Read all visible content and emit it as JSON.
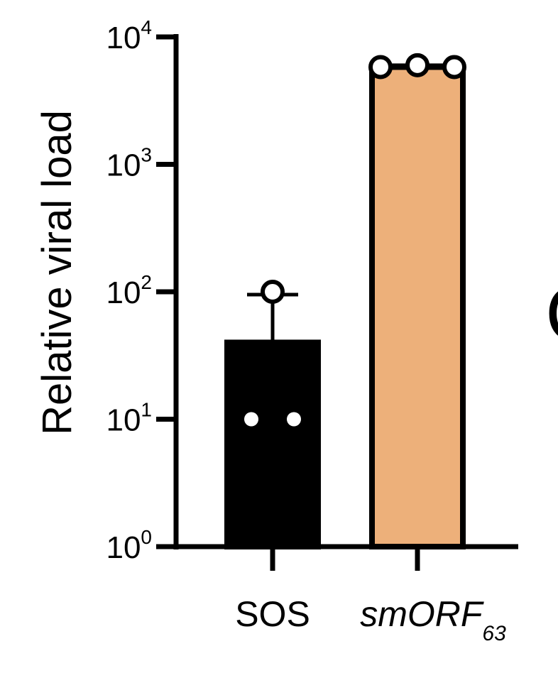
{
  "chart_data": {
    "type": "bar",
    "yscale": "log",
    "ylim": [
      1,
      10000
    ],
    "ylabel": "Relative viral load",
    "yticks": [
      {
        "base": "10",
        "exp": "0",
        "value": 1
      },
      {
        "base": "10",
        "exp": "1",
        "value": 10
      },
      {
        "base": "10",
        "exp": "2",
        "value": 100
      },
      {
        "base": "10",
        "exp": "3",
        "value": 1000
      },
      {
        "base": "10",
        "exp": "4",
        "value": 10000
      }
    ],
    "categories": [
      {
        "label": "SOS",
        "sub": "",
        "italic": false
      },
      {
        "label": "smORF",
        "sub": "63",
        "italic": true
      }
    ],
    "values": [
      40,
      5800
    ],
    "errors": [
      95,
      6000
    ],
    "points": [
      [
        10,
        10,
        100
      ],
      [
        5800,
        6000,
        5800
      ]
    ],
    "colors": {
      "bars": [
        "#000000",
        "#EDB07A"
      ],
      "outline": "#000000",
      "point_fill": "#ffffff"
    },
    "grid": false,
    "legend": "none"
  },
  "edge_text": "C"
}
